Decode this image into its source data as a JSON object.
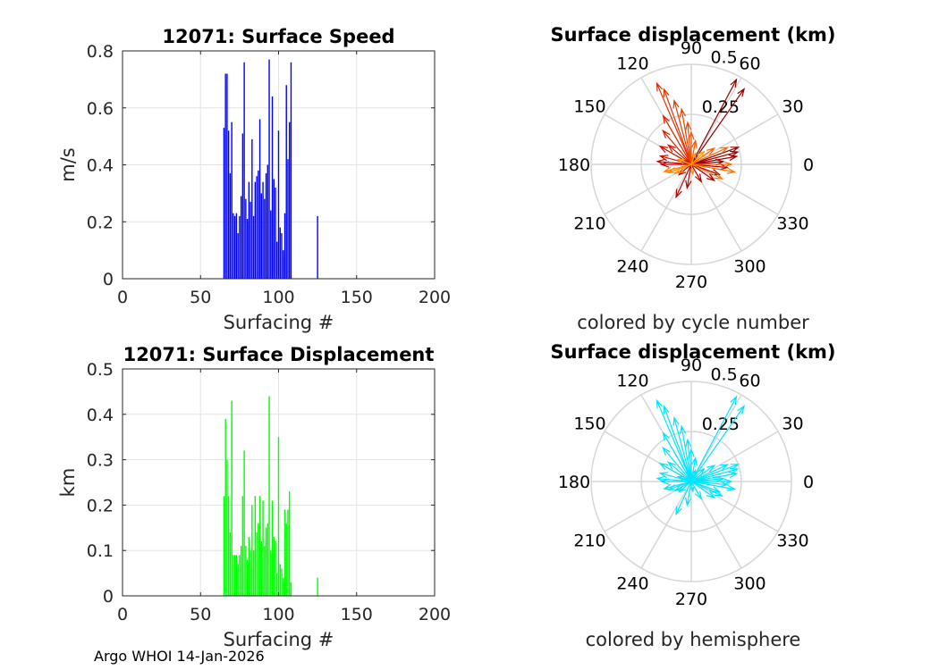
{
  "footer": "Argo WHOI 14-Jan-2026",
  "chart_data": [
    {
      "id": "speed",
      "type": "bar",
      "title": "12071: Surface Speed",
      "xlabel": "Surfacing #",
      "ylabel": "m/s",
      "xlim": [
        0,
        200
      ],
      "ylim": [
        0,
        0.8
      ],
      "xticks": [
        0,
        50,
        100,
        150,
        200
      ],
      "yticks": [
        0,
        0.2,
        0.4,
        0.6,
        0.8
      ],
      "ytick_labels": [
        "0",
        "0.2",
        "0.4",
        "0.6",
        "0.8"
      ],
      "bar_color": "#0000ff",
      "x": [
        65,
        66,
        67,
        68,
        69,
        70,
        71,
        72,
        73,
        74,
        75,
        76,
        77,
        78,
        79,
        80,
        81,
        82,
        83,
        84,
        85,
        86,
        87,
        88,
        89,
        90,
        91,
        92,
        93,
        94,
        95,
        96,
        97,
        98,
        99,
        100,
        101,
        102,
        103,
        104,
        105,
        106,
        107,
        108,
        125
      ],
      "values": [
        0.53,
        0.72,
        0.72,
        0.52,
        0.37,
        0.55,
        0.23,
        0.22,
        0.23,
        0.16,
        0.22,
        0.29,
        0.51,
        0.76,
        0.28,
        0.21,
        0.34,
        0.27,
        0.49,
        0.22,
        0.34,
        0.36,
        0.38,
        0.56,
        0.3,
        0.34,
        0.28,
        0.37,
        0.4,
        0.77,
        0.24,
        0.64,
        0.35,
        0.32,
        0.13,
        0.52,
        0.18,
        0.16,
        0.1,
        0.23,
        0.68,
        0.42,
        0.55,
        0.76,
        0.22
      ]
    },
    {
      "id": "displacement",
      "type": "bar",
      "title": "12071: Surface Displacement",
      "xlabel": "Surfacing #",
      "ylabel": "km",
      "xlim": [
        0,
        200
      ],
      "ylim": [
        0,
        0.5
      ],
      "xticks": [
        0,
        50,
        100,
        150,
        200
      ],
      "yticks": [
        0,
        0.1,
        0.2,
        0.3,
        0.4,
        0.5
      ],
      "ytick_labels": [
        "0",
        "0.1",
        "0.2",
        "0.3",
        "0.4",
        "0.5"
      ],
      "bar_color": "#00ff00",
      "x": [
        65,
        66,
        67,
        68,
        69,
        70,
        71,
        72,
        73,
        74,
        75,
        76,
        77,
        78,
        79,
        80,
        81,
        82,
        83,
        84,
        85,
        86,
        87,
        88,
        89,
        90,
        91,
        92,
        93,
        94,
        95,
        96,
        97,
        98,
        99,
        100,
        101,
        102,
        103,
        104,
        105,
        106,
        107,
        108,
        125
      ],
      "values": [
        0.22,
        0.39,
        0.3,
        0.22,
        0.14,
        0.43,
        0.09,
        0.09,
        0.09,
        0.07,
        0.09,
        0.11,
        0.22,
        0.32,
        0.11,
        0.08,
        0.13,
        0.1,
        0.2,
        0.1,
        0.22,
        0.14,
        0.16,
        0.22,
        0.12,
        0.21,
        0.11,
        0.15,
        0.16,
        0.44,
        0.1,
        0.21,
        0.13,
        0.12,
        0.05,
        0.35,
        0.07,
        0.06,
        0.04,
        0.19,
        0.16,
        0.19,
        0.23,
        0.03,
        0.04
      ]
    },
    {
      "id": "polar-cycle",
      "type": "polar-compass",
      "title": "Surface displacement (km)",
      "caption": "colored by cycle number",
      "rmax": 0.5,
      "rticks": [
        0.25,
        0.5
      ],
      "rtick_labels": [
        "0.25",
        "0.5"
      ],
      "theta_labels": [
        "0",
        "30",
        "60",
        "90",
        "120",
        "150",
        "180",
        "210",
        "240",
        "270",
        "300",
        "330"
      ],
      "color_mode": "cycle",
      "vectors": [
        {
          "theta": 62,
          "r": 0.48
        },
        {
          "theta": 55,
          "r": 0.46
        },
        {
          "theta": 20,
          "r": 0.25
        },
        {
          "theta": 15,
          "r": 0.24
        },
        {
          "theta": 10,
          "r": 0.23
        },
        {
          "theta": 5,
          "r": 0.16
        },
        {
          "theta": -5,
          "r": 0.18
        },
        {
          "theta": -20,
          "r": 0.15
        },
        {
          "theta": -35,
          "r": 0.14
        },
        {
          "theta": -60,
          "r": 0.1
        },
        {
          "theta": -100,
          "r": 0.12
        },
        {
          "theta": -115,
          "r": 0.18
        },
        {
          "theta": -140,
          "r": 0.08
        },
        {
          "theta": 180,
          "r": 0.15
        },
        {
          "theta": 175,
          "r": 0.17
        },
        {
          "theta": 165,
          "r": 0.16
        },
        {
          "theta": 150,
          "r": 0.18
        },
        {
          "theta": 140,
          "r": 0.15
        },
        {
          "theta": 130,
          "r": 0.22
        },
        {
          "theta": 120,
          "r": 0.28
        },
        {
          "theta": 113,
          "r": 0.44
        },
        {
          "theta": 110,
          "r": 0.4
        },
        {
          "theta": 105,
          "r": 0.33
        },
        {
          "theta": 100,
          "r": 0.28
        },
        {
          "theta": 95,
          "r": 0.21
        },
        {
          "theta": 90,
          "r": 0.16
        },
        {
          "theta": 80,
          "r": 0.12
        },
        {
          "theta": 35,
          "r": 0.14
        },
        {
          "theta": 25,
          "r": 0.2
        },
        {
          "theta": 0,
          "r": 0.2
        },
        {
          "theta": -10,
          "r": 0.22
        },
        {
          "theta": -25,
          "r": 0.17
        },
        {
          "theta": 195,
          "r": 0.14
        },
        {
          "theta": 200,
          "r": 0.12
        },
        {
          "theta": 210,
          "r": 0.09
        },
        {
          "theta": -80,
          "r": 0.05
        },
        {
          "theta": 160,
          "r": 0.07
        },
        {
          "theta": 45,
          "r": 0.09
        },
        {
          "theta": 70,
          "r": 0.06
        }
      ]
    },
    {
      "id": "polar-hemisphere",
      "type": "polar-compass",
      "title": "Surface displacement (km)",
      "caption": "colored by hemisphere",
      "rmax": 0.5,
      "rticks": [
        0.25,
        0.5
      ],
      "rtick_labels": [
        "0.25",
        "0.5"
      ],
      "theta_labels": [
        "0",
        "30",
        "60",
        "90",
        "120",
        "150",
        "180",
        "210",
        "240",
        "270",
        "300",
        "330"
      ],
      "color_mode": "single",
      "color": "#00e5ff",
      "vectors": [
        {
          "theta": 62,
          "r": 0.48
        },
        {
          "theta": 55,
          "r": 0.46
        },
        {
          "theta": 20,
          "r": 0.25
        },
        {
          "theta": 15,
          "r": 0.24
        },
        {
          "theta": 10,
          "r": 0.23
        },
        {
          "theta": 5,
          "r": 0.16
        },
        {
          "theta": -5,
          "r": 0.18
        },
        {
          "theta": -20,
          "r": 0.15
        },
        {
          "theta": -35,
          "r": 0.14
        },
        {
          "theta": -60,
          "r": 0.1
        },
        {
          "theta": -100,
          "r": 0.12
        },
        {
          "theta": -115,
          "r": 0.18
        },
        {
          "theta": -140,
          "r": 0.08
        },
        {
          "theta": 180,
          "r": 0.15
        },
        {
          "theta": 175,
          "r": 0.17
        },
        {
          "theta": 165,
          "r": 0.16
        },
        {
          "theta": 150,
          "r": 0.18
        },
        {
          "theta": 140,
          "r": 0.15
        },
        {
          "theta": 130,
          "r": 0.22
        },
        {
          "theta": 120,
          "r": 0.28
        },
        {
          "theta": 113,
          "r": 0.44
        },
        {
          "theta": 110,
          "r": 0.4
        },
        {
          "theta": 105,
          "r": 0.33
        },
        {
          "theta": 100,
          "r": 0.28
        },
        {
          "theta": 95,
          "r": 0.21
        },
        {
          "theta": 90,
          "r": 0.16
        },
        {
          "theta": 80,
          "r": 0.12
        },
        {
          "theta": 35,
          "r": 0.14
        },
        {
          "theta": 25,
          "r": 0.2
        },
        {
          "theta": 0,
          "r": 0.2
        },
        {
          "theta": -10,
          "r": 0.22
        },
        {
          "theta": -25,
          "r": 0.17
        },
        {
          "theta": 195,
          "r": 0.14
        },
        {
          "theta": 200,
          "r": 0.12
        },
        {
          "theta": 210,
          "r": 0.09
        },
        {
          "theta": -80,
          "r": 0.05
        },
        {
          "theta": 160,
          "r": 0.07
        },
        {
          "theta": 45,
          "r": 0.09
        },
        {
          "theta": 70,
          "r": 0.06
        }
      ]
    }
  ]
}
